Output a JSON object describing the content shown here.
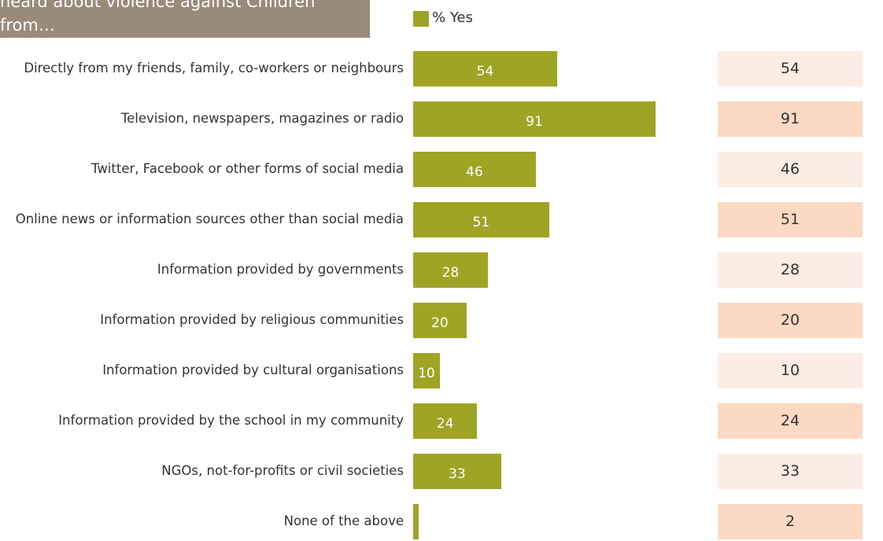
{
  "chart_data": {
    "type": "bar",
    "orientation": "horizontal",
    "title": "heard about violence against Children from…",
    "legend": "% Yes",
    "color": "#9fa425",
    "categories": [
      "Directly from my friends, family, co-workers or neighbours",
      "Television, newspapers, magazines or radio",
      "Twitter, Facebook or other forms of social media",
      "Online news or information sources other than social media",
      "Information provided by governments",
      "Information provided by religious communities",
      "Information provided by cultural organisations",
      "Information provided by the school in my community",
      "NGOs, not-for-profits or civil societies",
      "None of the above"
    ],
    "values": [
      54,
      91,
      46,
      51,
      28,
      20,
      10,
      24,
      33,
      2
    ]
  }
}
